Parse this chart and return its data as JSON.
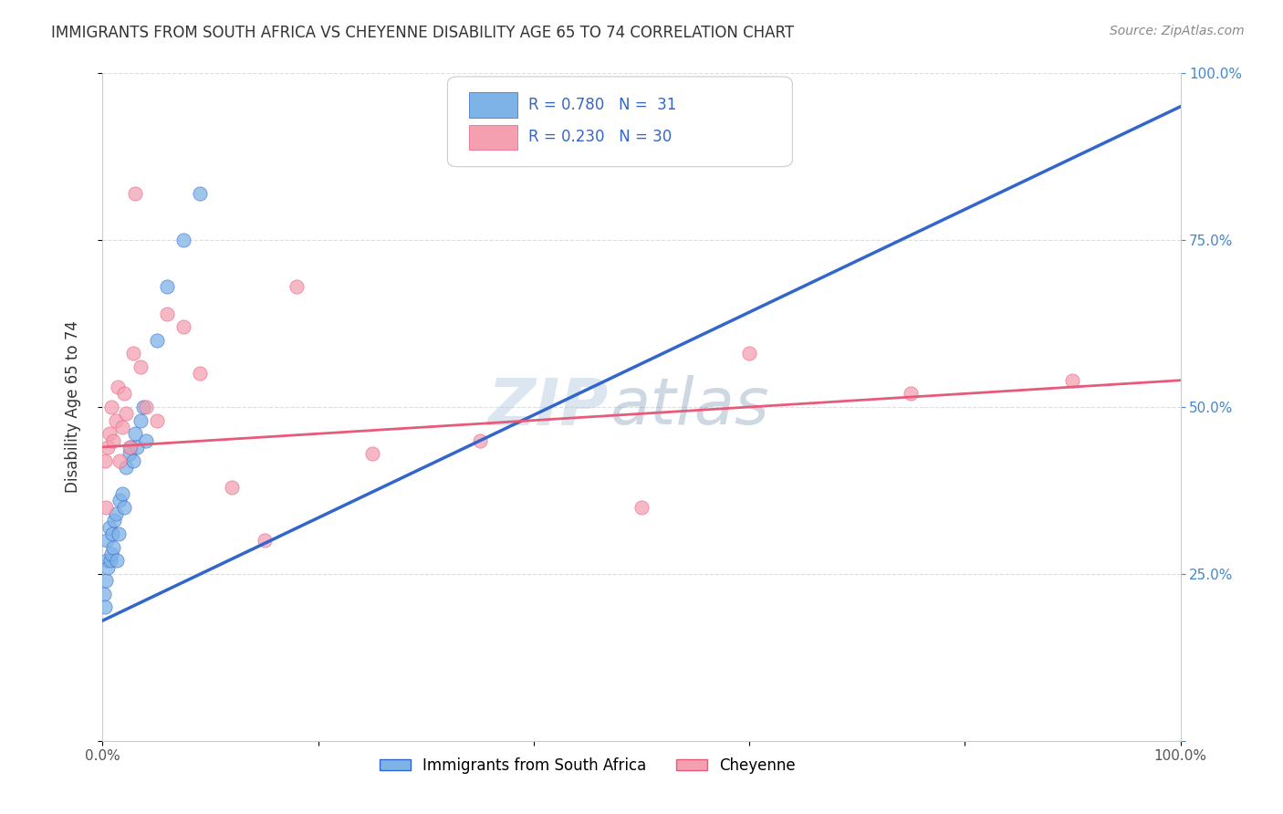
{
  "title": "IMMIGRANTS FROM SOUTH AFRICA VS CHEYENNE DISABILITY AGE 65 TO 74 CORRELATION CHART",
  "source": "Source: ZipAtlas.com",
  "ylabel": "Disability Age 65 to 74",
  "legend_blue_r": "R = 0.780",
  "legend_blue_n": "N =  31",
  "legend_pink_r": "R = 0.230",
  "legend_pink_n": "N = 30",
  "legend_label_blue": "Immigrants from South Africa",
  "legend_label_pink": "Cheyenne",
  "blue_scatter_x": [
    0.001,
    0.002,
    0.003,
    0.004,
    0.004,
    0.005,
    0.006,
    0.007,
    0.008,
    0.009,
    0.01,
    0.011,
    0.012,
    0.013,
    0.015,
    0.016,
    0.018,
    0.02,
    0.022,
    0.025,
    0.026,
    0.028,
    0.03,
    0.032,
    0.035,
    0.038,
    0.04,
    0.05,
    0.06,
    0.075,
    0.09
  ],
  "blue_scatter_y": [
    0.22,
    0.2,
    0.24,
    0.27,
    0.3,
    0.26,
    0.32,
    0.27,
    0.28,
    0.31,
    0.29,
    0.33,
    0.34,
    0.27,
    0.31,
    0.36,
    0.37,
    0.35,
    0.41,
    0.43,
    0.44,
    0.42,
    0.46,
    0.44,
    0.48,
    0.5,
    0.45,
    0.6,
    0.68,
    0.75,
    0.82
  ],
  "pink_scatter_x": [
    0.002,
    0.003,
    0.005,
    0.006,
    0.008,
    0.01,
    0.012,
    0.014,
    0.016,
    0.018,
    0.02,
    0.022,
    0.025,
    0.028,
    0.03,
    0.035,
    0.04,
    0.05,
    0.06,
    0.075,
    0.09,
    0.12,
    0.15,
    0.18,
    0.25,
    0.35,
    0.5,
    0.6,
    0.75,
    0.9
  ],
  "pink_scatter_y": [
    0.42,
    0.35,
    0.44,
    0.46,
    0.5,
    0.45,
    0.48,
    0.53,
    0.42,
    0.47,
    0.52,
    0.49,
    0.44,
    0.58,
    0.82,
    0.56,
    0.5,
    0.48,
    0.64,
    0.62,
    0.55,
    0.38,
    0.3,
    0.68,
    0.43,
    0.45,
    0.35,
    0.58,
    0.52,
    0.54
  ],
  "blue_line_x": [
    0.0,
    1.0
  ],
  "blue_line_y": [
    0.18,
    0.95
  ],
  "pink_line_x": [
    0.0,
    1.0
  ],
  "pink_line_y": [
    0.44,
    0.54
  ],
  "xlim": [
    0.0,
    1.0
  ],
  "ylim": [
    0.0,
    1.0
  ],
  "background_color": "#ffffff",
  "blue_color": "#7EB3E8",
  "pink_color": "#F4A0B0",
  "blue_line_color": "#3366CC",
  "pink_line_color": "#E85A7A",
  "watermark_zip": "ZIP",
  "watermark_atlas": "atlas",
  "grid_color": "#dddddd",
  "title_color": "#333333",
  "right_axis_color": "#4488CC"
}
